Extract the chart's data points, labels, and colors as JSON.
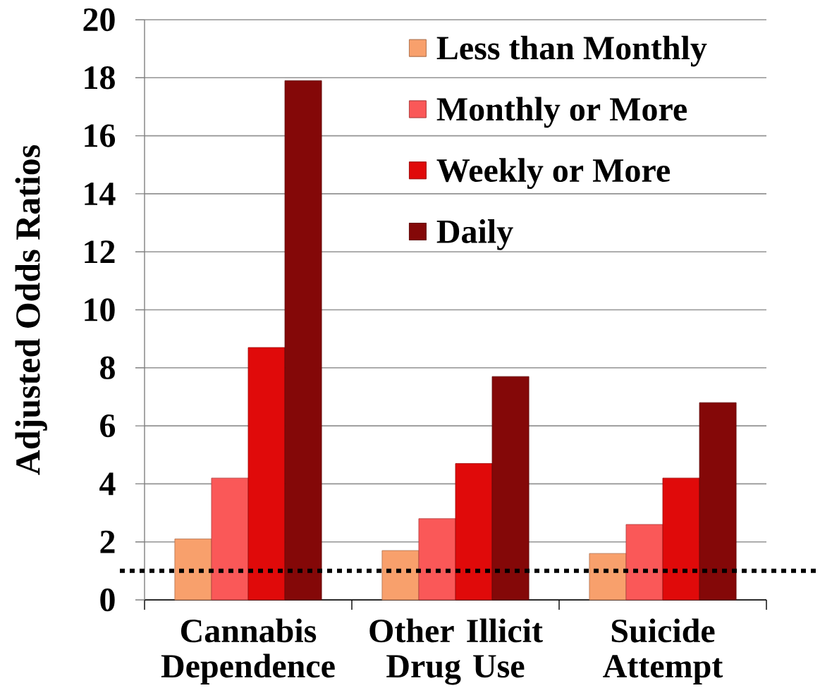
{
  "chart_data": {
    "type": "bar",
    "ylabel": "Adjusted Odds Ratios",
    "categories": [
      "Cannabis Dependence",
      "Other Illicit Drug Use",
      "Suicide Attempt"
    ],
    "series": [
      {
        "name": "Less than Monthly",
        "color": "#f8a06c",
        "values": [
          2.1,
          1.7,
          1.6
        ]
      },
      {
        "name": "Monthly or More",
        "color": "#fa5858",
        "values": [
          4.2,
          2.8,
          2.6
        ]
      },
      {
        "name": "Weekly or More",
        "color": "#e00a0a",
        "values": [
          8.7,
          4.7,
          4.2
        ]
      },
      {
        "name": "Daily",
        "color": "#840808",
        "values": [
          17.9,
          7.7,
          6.8
        ]
      }
    ],
    "ylim": [
      0,
      20
    ],
    "yticks": [
      0,
      2,
      4,
      6,
      8,
      10,
      12,
      14,
      16,
      18,
      20
    ],
    "grid": "y",
    "legend": "top right",
    "ref_lines": [
      {
        "axis": "y",
        "value": 1,
        "color": "#000000",
        "line_style": "dotted"
      }
    ]
  }
}
